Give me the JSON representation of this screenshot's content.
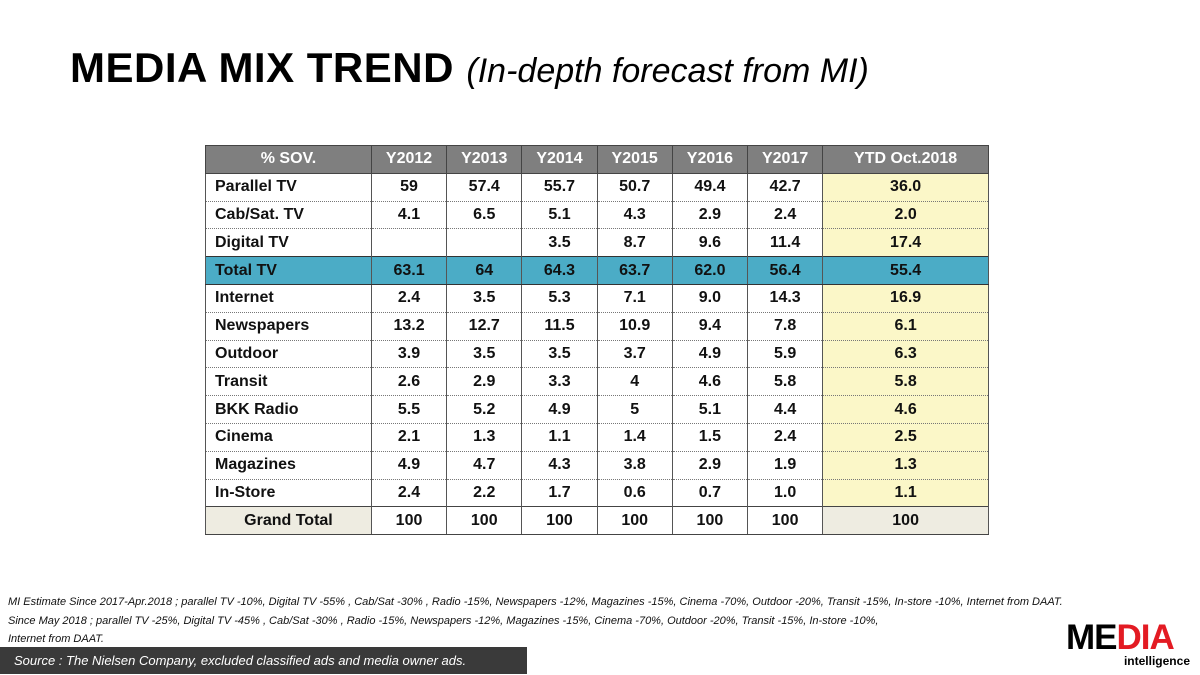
{
  "title": {
    "main": "MEDIA MIX TREND",
    "sub": "(In-depth forecast from MI)"
  },
  "table": {
    "headers": [
      "% SOV.",
      "Y2012",
      "Y2013",
      "Y2014",
      "Y2015",
      "Y2016",
      "Y2017",
      "YTD Oct.2018"
    ],
    "rows": [
      {
        "label": "Parallel TV",
        "values": [
          "59",
          "57.4",
          "55.7",
          "50.7",
          "49.4",
          "42.7",
          "36.0"
        ]
      },
      {
        "label": "Cab/Sat. TV",
        "values": [
          "4.1",
          "6.5",
          "5.1",
          "4.3",
          "2.9",
          "2.4",
          "2.0"
        ]
      },
      {
        "label": "Digital TV",
        "values": [
          "",
          "",
          "3.5",
          "8.7",
          "9.6",
          "11.4",
          "17.4"
        ]
      },
      {
        "label": "Total TV",
        "values": [
          "63.1",
          "64",
          "64.3",
          "63.7",
          "62.0",
          "56.4",
          "55.4"
        ]
      },
      {
        "label": "Internet",
        "values": [
          "2.4",
          "3.5",
          "5.3",
          "7.1",
          "9.0",
          "14.3",
          "16.9"
        ]
      },
      {
        "label": "Newspapers",
        "values": [
          "13.2",
          "12.7",
          "11.5",
          "10.9",
          "9.4",
          "7.8",
          "6.1"
        ]
      },
      {
        "label": "Outdoor",
        "values": [
          "3.9",
          "3.5",
          "3.5",
          "3.7",
          "4.9",
          "5.9",
          "6.3"
        ]
      },
      {
        "label": "Transit",
        "values": [
          "2.6",
          "2.9",
          "3.3",
          "4",
          "4.6",
          "5.8",
          "5.8"
        ]
      },
      {
        "label": "BKK Radio",
        "values": [
          "5.5",
          "5.2",
          "4.9",
          "5",
          "5.1",
          "4.4",
          "4.6"
        ]
      },
      {
        "label": "Cinema",
        "values": [
          "2.1",
          "1.3",
          "1.1",
          "1.4",
          "1.5",
          "2.4",
          "2.5"
        ]
      },
      {
        "label": "Magazines",
        "values": [
          "4.9",
          "4.7",
          "4.3",
          "3.8",
          "2.9",
          "1.9",
          "1.3"
        ]
      },
      {
        "label": "In-Store",
        "values": [
          "2.4",
          "2.2",
          "1.7",
          "0.6",
          "0.7",
          "1.0",
          "1.1"
        ]
      },
      {
        "label": "Grand Total",
        "values": [
          "100",
          "100",
          "100",
          "100",
          "100",
          "100",
          "100"
        ]
      }
    ]
  },
  "notes": [
    "MI Estimate Since 2017-Apr.2018 ; parallel TV  -10%, Digital TV  -55% , Cab/Sat  -30% , Radio -15%,  Newspapers  -12%, Magazines  -15%, Cinema  -70%, Outdoor  -20%, Transit  -15%, In-store  -10%, Internet from DAAT.",
    "Since May 2018 ; parallel TV  -25%, Digital TV  -45% , Cab/Sat  -30% , Radio  -15%, Newspapers  -12%, Magazines  -15%, Cinema  -70%, Outdoor  -20%, Transit  -15%, In-store  -10%,",
    "Internet from DAAT."
  ],
  "source": "Source :  The Nielsen  Company, excluded  classified  ads  and media owner ads.",
  "logo": {
    "part1": "ME",
    "part2": "DIA",
    "tagline": "intelligence"
  },
  "colors": {
    "header": "#7f7f7f",
    "total_row": "#4bacc6",
    "ytd_column": "#fbf7c8",
    "grand_total": "#eeece1",
    "logo_red": "#e31b23"
  }
}
